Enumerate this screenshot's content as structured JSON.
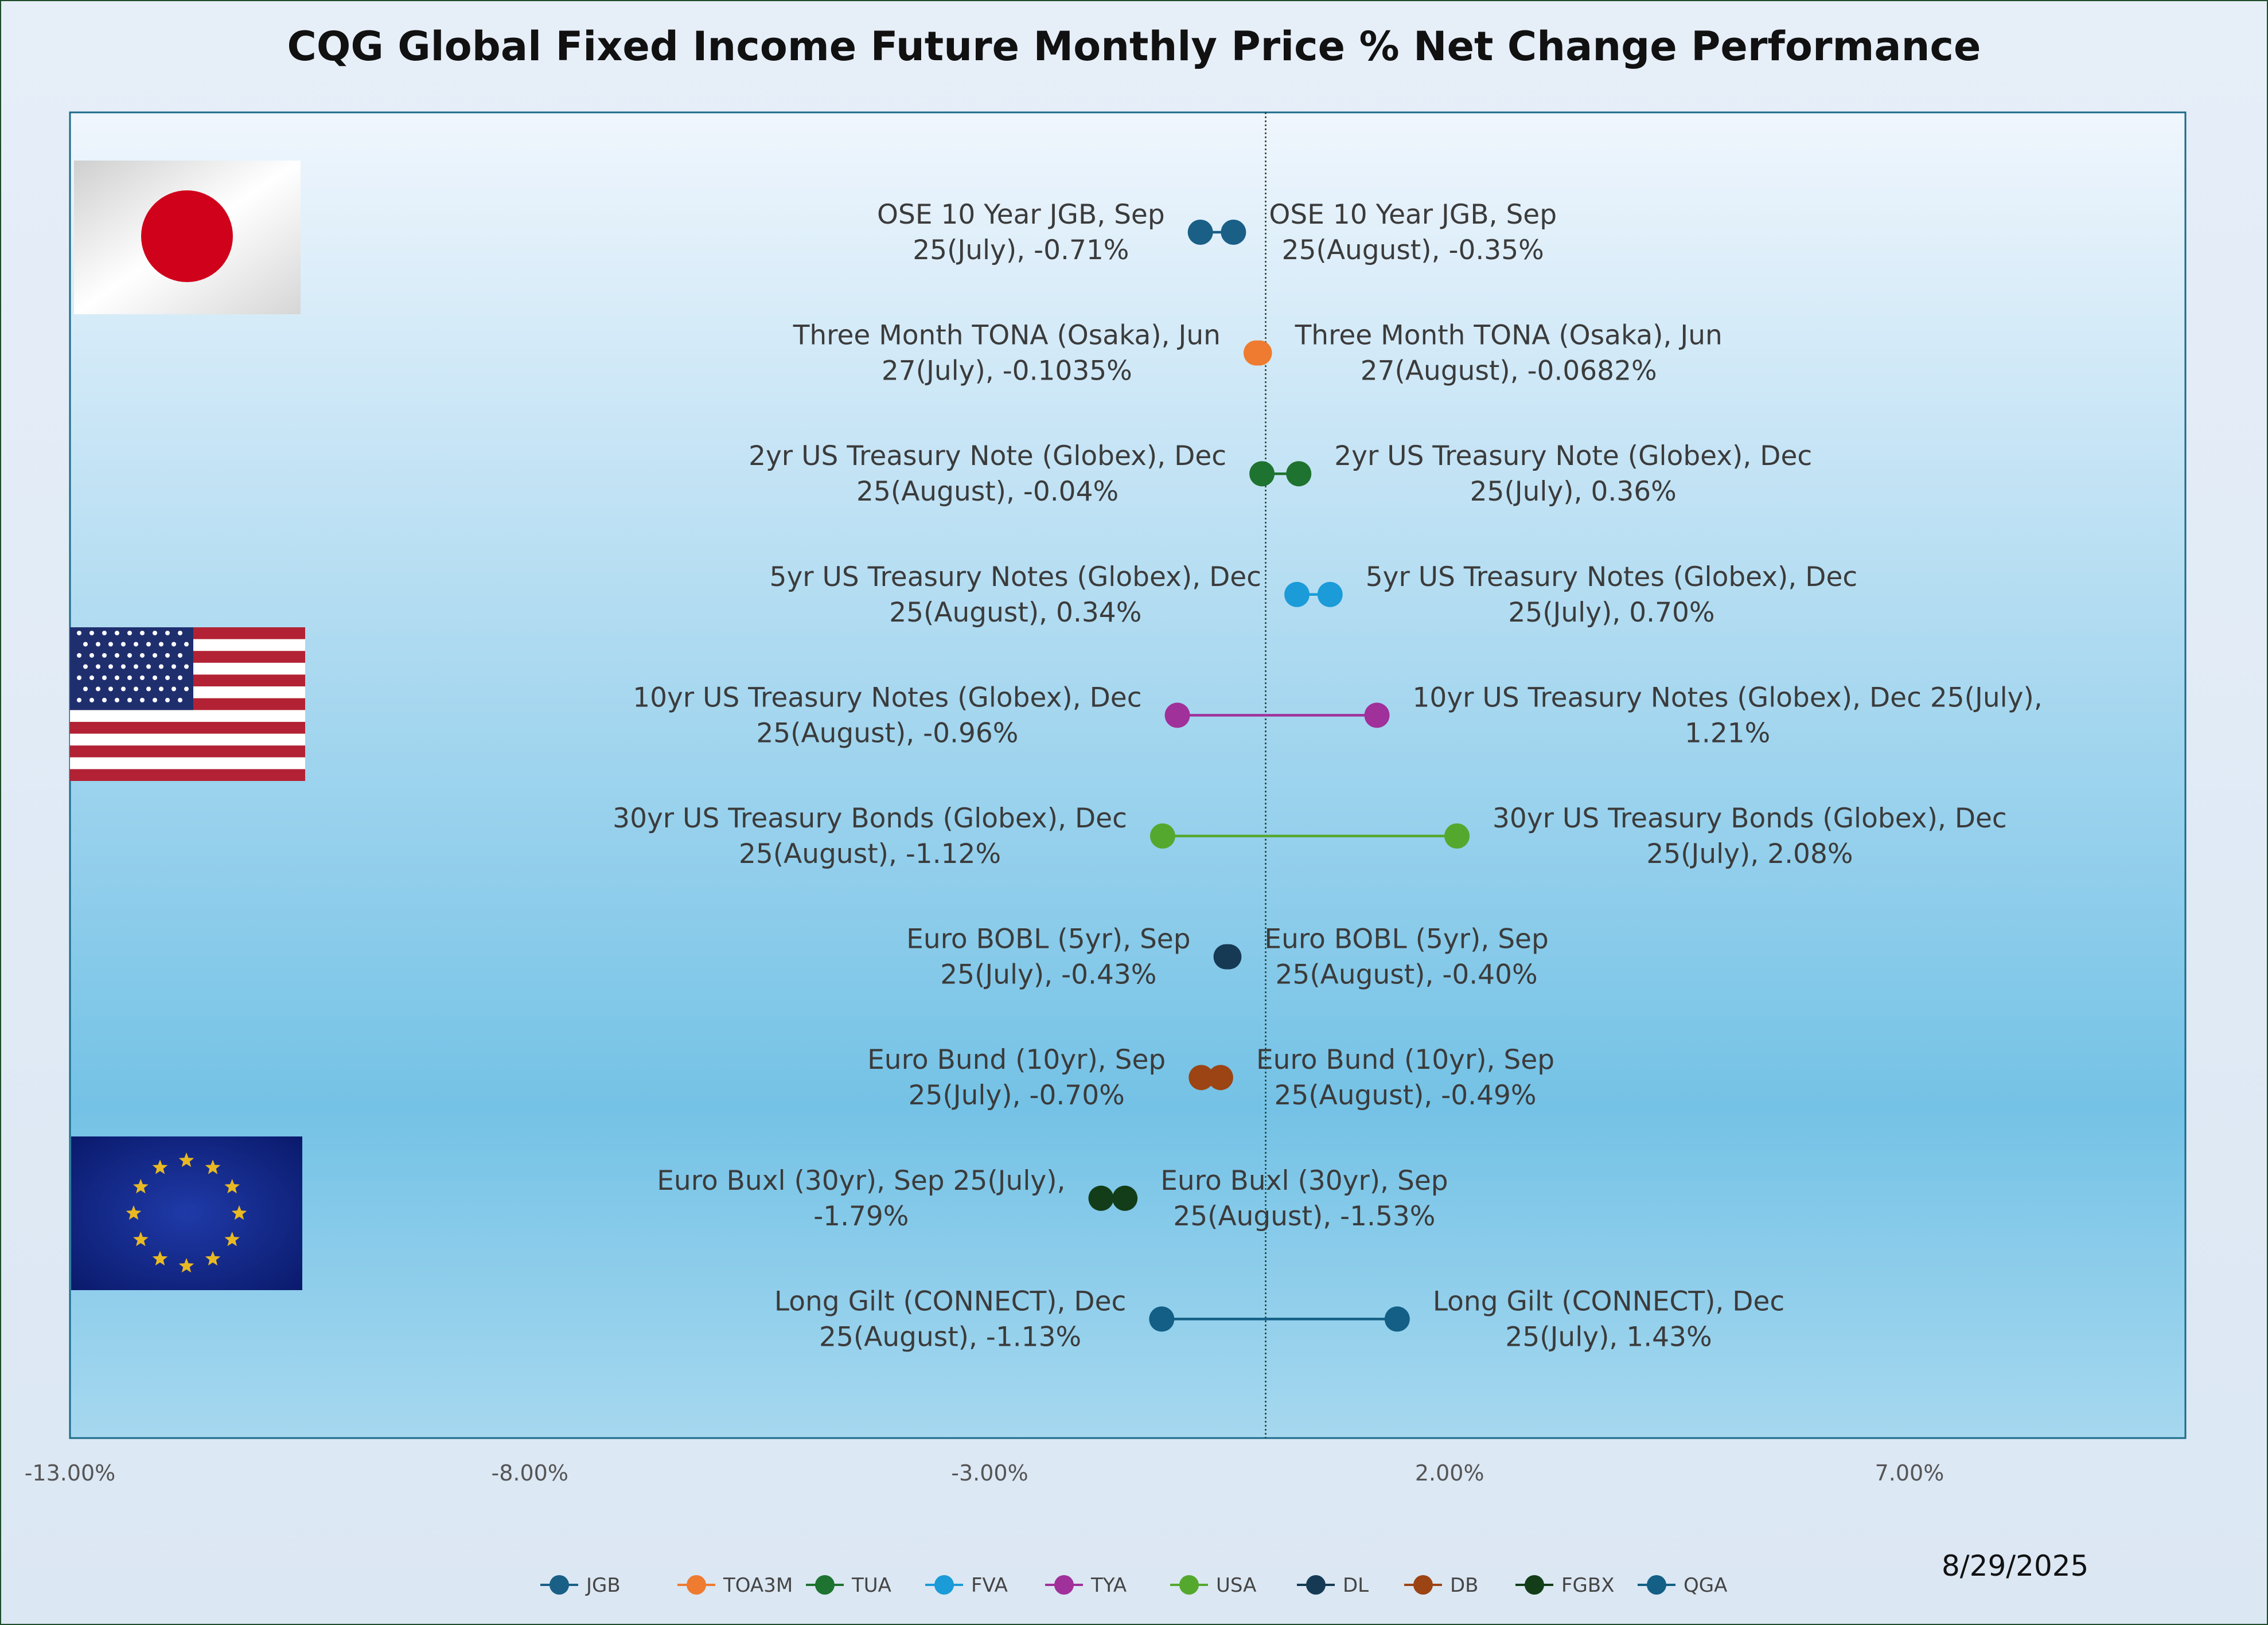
{
  "chart_data": {
    "type": "dumbbell",
    "title": "CQG Global Fixed Income Future Monthly Price % Net Change Performance",
    "date": "8/29/2025",
    "xlim": [
      -13,
      10
    ],
    "x_ticks": [
      "-13.00%",
      "-8.00%",
      "-3.00%",
      "2.00%",
      "7.00%"
    ],
    "x_tick_values": [
      -13,
      -8,
      -3,
      2,
      7
    ],
    "reference_line_x": 0,
    "grid": false,
    "legend_position": "bottom",
    "colors": {
      "plot_bg_top": "#f0f6fd",
      "plot_bg_mid": "#74c2e6",
      "plot_bg_bottom": "#a6d8ef",
      "plot_border": "#1a6a8a"
    },
    "series": [
      {
        "code": "JGB",
        "color": "#1a5f86",
        "left_label": [
          "OSE 10 Year JGB, Sep",
          "25(July), -0.71%"
        ],
        "right_label": [
          "OSE 10 Year JGB, Sep",
          "25(August), -0.35%"
        ],
        "july": -0.71,
        "august": -0.35
      },
      {
        "code": "TOA3M",
        "color": "#ee7b30",
        "left_label": [
          "Three Month TONA (Osaka), Jun",
          "27(July), -0.1035%"
        ],
        "right_label": [
          "Three Month TONA (Osaka), Jun",
          "27(August), -0.0682%"
        ],
        "july": -0.1035,
        "august": -0.0682
      },
      {
        "code": "TUA",
        "color": "#1e7330",
        "left_label": [
          "2yr US Treasury Note (Globex), Dec",
          "25(August), -0.04%"
        ],
        "right_label": [
          "2yr US Treasury Note (Globex), Dec",
          "25(July), 0.36%"
        ],
        "july": 0.36,
        "august": -0.04
      },
      {
        "code": "FVA",
        "color": "#1b9bd8",
        "left_label": [
          "5yr US Treasury Notes (Globex), Dec",
          "25(August), 0.34%"
        ],
        "right_label": [
          "5yr US Treasury Notes (Globex), Dec",
          "25(July), 0.70%"
        ],
        "july": 0.7,
        "august": 0.34
      },
      {
        "code": "TYA",
        "color": "#a0309a",
        "left_label": [
          "10yr US Treasury Notes (Globex), Dec",
          "25(August), -0.96%"
        ],
        "right_label": [
          "10yr US Treasury Notes (Globex), Dec 25(July),",
          "1.21%"
        ],
        "july": 1.21,
        "august": -0.96
      },
      {
        "code": "USA",
        "color": "#55a82e",
        "left_label": [
          "30yr US Treasury Bonds (Globex), Dec",
          "25(August), -1.12%"
        ],
        "right_label": [
          "30yr US Treasury Bonds (Globex), Dec",
          "25(July), 2.08%"
        ],
        "july": 2.08,
        "august": -1.12
      },
      {
        "code": "DL",
        "color": "#163a54",
        "left_label": [
          "Euro BOBL (5yr), Sep",
          "25(July), -0.43%"
        ],
        "right_label": [
          "Euro BOBL (5yr), Sep",
          "25(August), -0.40%"
        ],
        "july": -0.43,
        "august": -0.4
      },
      {
        "code": "DB",
        "color": "#9c4414",
        "left_label": [
          "Euro Bund (10yr), Sep",
          "25(July), -0.70%"
        ],
        "right_label": [
          "Euro Bund (10yr), Sep",
          "25(August), -0.49%"
        ],
        "july": -0.7,
        "august": -0.49
      },
      {
        "code": "FGBX",
        "color": "#123d18",
        "left_label": [
          "Euro Buxl (30yr), Sep 25(July),",
          "-1.79%"
        ],
        "right_label": [
          "Euro Buxl (30yr), Sep",
          "25(August), -1.53%"
        ],
        "july": -1.79,
        "august": -1.53
      },
      {
        "code": "QGA",
        "color": "#135f86",
        "left_label": [
          "Long Gilt (CONNECT), Dec",
          "25(August), -1.13%"
        ],
        "right_label": [
          "Long Gilt (CONNECT), Dec",
          "25(July), 1.43%"
        ],
        "july": 1.43,
        "august": -1.13
      }
    ]
  }
}
